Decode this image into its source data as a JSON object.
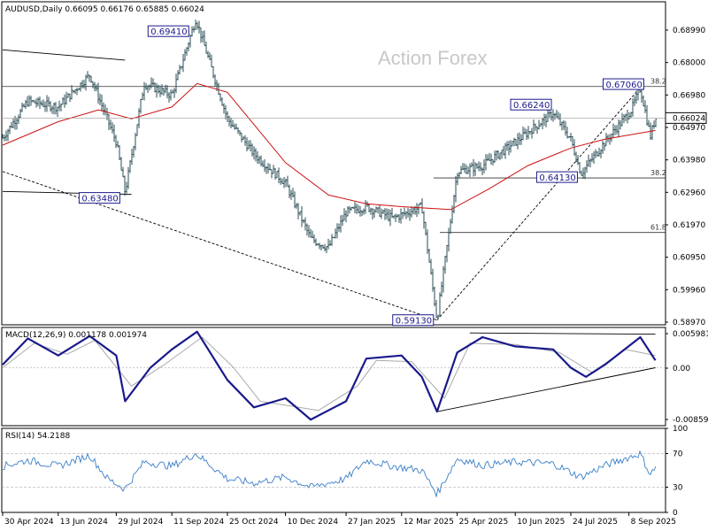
{
  "chart_data": [
    {
      "type": "bar",
      "panel": "price",
      "header": {
        "symbol": "AUDUSD,Daily",
        "open": "0.66095",
        "high": "0.66176",
        "low": "0.65885",
        "close": "0.66024"
      },
      "watermark": "Action Forex",
      "y_axis_labels": [
        "0.68990",
        "0.68000",
        "0.66980",
        "0.64970",
        "0.63980",
        "0.62960",
        "0.61970",
        "0.60950",
        "0.59960",
        "0.58970"
      ],
      "ylim": [
        0.5897,
        0.6999
      ],
      "current_price_label": "0.66024",
      "price_path": [
        {
          "d": "2024-04-30",
          "v": 0.6535
        },
        {
          "d": "2024-05-20",
          "v": 0.666
        },
        {
          "d": "2024-06-13",
          "v": 0.664
        },
        {
          "d": "2024-07-08",
          "v": 0.675
        },
        {
          "d": "2024-07-29",
          "v": 0.652
        },
        {
          "d": "2024-08-05",
          "v": 0.6348
        },
        {
          "d": "2024-08-20",
          "v": 0.672
        },
        {
          "d": "2024-09-11",
          "v": 0.668
        },
        {
          "d": "2024-09-30",
          "v": 0.6941
        },
        {
          "d": "2024-10-25",
          "v": 0.66
        },
        {
          "d": "2024-11-15",
          "v": 0.648
        },
        {
          "d": "2024-12-10",
          "v": 0.638
        },
        {
          "d": "2024-12-30",
          "v": 0.619
        },
        {
          "d": "2025-01-13",
          "v": 0.616
        },
        {
          "d": "2025-01-27",
          "v": 0.628
        },
        {
          "d": "2025-02-12",
          "v": 0.63
        },
        {
          "d": "2025-03-05",
          "v": 0.626
        },
        {
          "d": "2025-03-28",
          "v": 0.63
        },
        {
          "d": "2025-04-09",
          "v": 0.5913
        },
        {
          "d": "2025-04-25",
          "v": 0.642
        },
        {
          "d": "2025-05-15",
          "v": 0.644
        },
        {
          "d": "2025-06-10",
          "v": 0.652
        },
        {
          "d": "2025-07-10",
          "v": 0.662
        },
        {
          "d": "2025-07-24",
          "v": 0.653
        },
        {
          "d": "2025-08-01",
          "v": 0.6413
        },
        {
          "d": "2025-08-20",
          "v": 0.652
        },
        {
          "d": "2025-09-10",
          "v": 0.663
        },
        {
          "d": "2025-09-17",
          "v": 0.6706
        },
        {
          "d": "2025-09-25",
          "v": 0.654
        },
        {
          "d": "2025-09-29",
          "v": 0.6602
        }
      ],
      "ma_path": [
        {
          "d": "2024-04-30",
          "v": 0.651
        },
        {
          "d": "2024-06-13",
          "v": 0.659
        },
        {
          "d": "2024-07-15",
          "v": 0.663
        },
        {
          "d": "2024-08-10",
          "v": 0.66
        },
        {
          "d": "2024-09-11",
          "v": 0.664
        },
        {
          "d": "2024-10-01",
          "v": 0.672
        },
        {
          "d": "2024-10-25",
          "v": 0.669
        },
        {
          "d": "2024-12-10",
          "v": 0.645
        },
        {
          "d": "2025-01-13",
          "v": 0.634
        },
        {
          "d": "2025-02-12",
          "v": 0.631
        },
        {
          "d": "2025-03-12",
          "v": 0.63
        },
        {
          "d": "2025-04-20",
          "v": 0.629
        },
        {
          "d": "2025-05-20",
          "v": 0.636
        },
        {
          "d": "2025-06-20",
          "v": 0.644
        },
        {
          "d": "2025-07-24",
          "v": 0.65
        },
        {
          "d": "2025-08-20",
          "v": 0.653
        },
        {
          "d": "2025-09-29",
          "v": 0.656
        }
      ],
      "labels": [
        {
          "text": "0.69410",
          "d": "2024-09-30",
          "v": 0.6941
        },
        {
          "text": "0.63480",
          "d": "2024-08-05",
          "v": 0.6348
        },
        {
          "text": "0.59130",
          "d": "2025-04-09",
          "v": 0.5913
        },
        {
          "text": "0.66240",
          "d": "2025-07-10",
          "v": 0.6624
        },
        {
          "text": "0.64130",
          "d": "2025-08-01",
          "v": 0.6413
        },
        {
          "text": "0.67060",
          "d": "2025-09-17",
          "v": 0.6706
        }
      ],
      "fibonacci": [
        {
          "label": "38.2",
          "v": 0.671
        },
        {
          "label": "38.2",
          "v": 0.6398
        },
        {
          "label": "61.8",
          "v": 0.6212
        }
      ],
      "trendlines": [
        {
          "from": {
            "d": "2024-04-30",
            "v": 0.6835
          },
          "to": {
            "d": "2024-08-05",
            "v": 0.68
          },
          "style": "solid"
        },
        {
          "from": {
            "d": "2024-04-30",
            "v": 0.6352
          },
          "to": {
            "d": "2024-08-10",
            "v": 0.6342
          },
          "style": "solid"
        },
        {
          "from": {
            "d": "2024-04-30",
            "v": 0.642
          },
          "to": {
            "d": "2025-04-09",
            "v": 0.5913
          },
          "style": "dashed"
        },
        {
          "from": {
            "d": "2025-04-09",
            "v": 0.5913
          },
          "to": {
            "d": "2025-09-17",
            "v": 0.6706
          },
          "style": "dashed"
        }
      ]
    },
    {
      "type": "line",
      "panel": "macd",
      "header": "MACD(12,26,9) 0.001178 0.001974",
      "y_axis_labels": [
        "0.005981",
        "0.00",
        "-0.00859"
      ],
      "ylim": [
        -0.0095,
        0.0066
      ],
      "series": [
        {
          "values": [
            {
              "d": "2024-04-30",
              "v": 0.0005
            },
            {
              "d": "2024-05-20",
              "v": 0.0048
            },
            {
              "d": "2024-06-13",
              "v": 0.002
            },
            {
              "d": "2024-07-08",
              "v": 0.0052
            },
            {
              "d": "2024-07-29",
              "v": 0.002
            },
            {
              "d": "2024-08-05",
              "v": -0.0055
            },
            {
              "d": "2024-08-25",
              "v": 0.0
            },
            {
              "d": "2024-09-11",
              "v": 0.003
            },
            {
              "d": "2024-10-01",
              "v": 0.0059
            },
            {
              "d": "2024-10-25",
              "v": -0.002
            },
            {
              "d": "2024-11-15",
              "v": -0.0065
            },
            {
              "d": "2024-12-10",
              "v": -0.005
            },
            {
              "d": "2024-12-30",
              "v": -0.0085
            },
            {
              "d": "2025-01-27",
              "v": -0.0055
            },
            {
              "d": "2025-02-12",
              "v": 0.0015
            },
            {
              "d": "2025-03-12",
              "v": 0.002
            },
            {
              "d": "2025-03-28",
              "v": -0.0015
            },
            {
              "d": "2025-04-09",
              "v": -0.0072
            },
            {
              "d": "2025-04-25",
              "v": 0.0025
            },
            {
              "d": "2025-05-15",
              "v": 0.005
            },
            {
              "d": "2025-06-10",
              "v": 0.0035
            },
            {
              "d": "2025-07-10",
              "v": 0.003
            },
            {
              "d": "2025-07-24",
              "v": 0.0
            },
            {
              "d": "2025-08-05",
              "v": -0.0015
            },
            {
              "d": "2025-08-20",
              "v": 0.0005
            },
            {
              "d": "2025-09-17",
              "v": 0.005
            },
            {
              "d": "2025-09-29",
              "v": 0.0012
            }
          ]
        },
        {
          "values": [
            {
              "d": "2024-04-30",
              "v": 0.0
            },
            {
              "d": "2024-05-25",
              "v": 0.004
            },
            {
              "d": "2024-06-20",
              "v": 0.0022
            },
            {
              "d": "2024-07-12",
              "v": 0.0045
            },
            {
              "d": "2024-08-10",
              "v": -0.003
            },
            {
              "d": "2024-09-05",
              "v": 0.0005
            },
            {
              "d": "2024-10-05",
              "v": 0.005
            },
            {
              "d": "2024-10-30",
              "v": 0.0
            },
            {
              "d": "2024-11-20",
              "v": -0.0055
            },
            {
              "d": "2025-01-05",
              "v": -0.007
            },
            {
              "d": "2025-02-05",
              "v": -0.003
            },
            {
              "d": "2025-02-20",
              "v": 0.0012
            },
            {
              "d": "2025-03-20",
              "v": 0.001
            },
            {
              "d": "2025-04-15",
              "v": -0.005
            },
            {
              "d": "2025-05-05",
              "v": 0.004
            },
            {
              "d": "2025-06-10",
              "v": 0.0038
            },
            {
              "d": "2025-07-15",
              "v": 0.0025
            },
            {
              "d": "2025-08-10",
              "v": -0.0008
            },
            {
              "d": "2025-09-05",
              "v": 0.003
            },
            {
              "d": "2025-09-29",
              "v": 0.002
            }
          ]
        }
      ],
      "trendlines": [
        {
          "from": {
            "d": "2025-05-05",
            "v": 0.0057
          },
          "to": {
            "d": "2025-09-29",
            "v": 0.0055
          }
        },
        {
          "from": {
            "d": "2025-04-09",
            "v": -0.0072
          },
          "to": {
            "d": "2025-09-29",
            "v": 0.0
          }
        }
      ]
    },
    {
      "type": "line",
      "panel": "rsi",
      "header": "RSI(14) 54.2188",
      "y_axis_labels": [
        "100",
        "70",
        "30",
        "0"
      ],
      "ylim": [
        0,
        100
      ],
      "levels": [
        70,
        30
      ],
      "series": [
        {
          "values": [
            {
              "d": "2024-04-30",
              "v": 55
            },
            {
              "d": "2024-05-20",
              "v": 62
            },
            {
              "d": "2024-06-13",
              "v": 55
            },
            {
              "d": "2024-07-08",
              "v": 68
            },
            {
              "d": "2024-07-22",
              "v": 40
            },
            {
              "d": "2024-08-05",
              "v": 28
            },
            {
              "d": "2024-08-20",
              "v": 60
            },
            {
              "d": "2024-09-11",
              "v": 55
            },
            {
              "d": "2024-09-30",
              "v": 70
            },
            {
              "d": "2024-10-25",
              "v": 40
            },
            {
              "d": "2024-11-15",
              "v": 35
            },
            {
              "d": "2024-12-10",
              "v": 42
            },
            {
              "d": "2024-12-30",
              "v": 30
            },
            {
              "d": "2025-01-27",
              "v": 40
            },
            {
              "d": "2025-02-12",
              "v": 62
            },
            {
              "d": "2025-03-05",
              "v": 55
            },
            {
              "d": "2025-03-28",
              "v": 50
            },
            {
              "d": "2025-04-09",
              "v": 22
            },
            {
              "d": "2025-04-25",
              "v": 64
            },
            {
              "d": "2025-05-15",
              "v": 56
            },
            {
              "d": "2025-06-10",
              "v": 60
            },
            {
              "d": "2025-07-10",
              "v": 58
            },
            {
              "d": "2025-08-01",
              "v": 42
            },
            {
              "d": "2025-08-20",
              "v": 56
            },
            {
              "d": "2025-09-17",
              "v": 70
            },
            {
              "d": "2025-09-25",
              "v": 45
            },
            {
              "d": "2025-09-29",
              "v": 54
            }
          ]
        }
      ]
    }
  ],
  "x_axis": {
    "labels": [
      {
        "text": "30 Apr 2024",
        "d": "2024-04-30"
      },
      {
        "text": "13 Jun 2024",
        "d": "2024-06-13"
      },
      {
        "text": "29 Jul 2024",
        "d": "2024-07-29"
      },
      {
        "text": "11 Sep 2024",
        "d": "2024-09-11"
      },
      {
        "text": "25 Oct 2024",
        "d": "2024-10-25"
      },
      {
        "text": "10 Dec 2024",
        "d": "2024-12-10"
      },
      {
        "text": "27 Jan 2025",
        "d": "2025-01-27"
      },
      {
        "text": "12 Mar 2025",
        "d": "2025-03-12"
      },
      {
        "text": "25 Apr 2025",
        "d": "2025-04-25"
      },
      {
        "text": "10 Jun 2025",
        "d": "2025-06-10"
      },
      {
        "text": "24 Jul 2025",
        "d": "2025-07-24"
      },
      {
        "text": "8 Sep 2025",
        "d": "2025-09-08"
      }
    ]
  },
  "colors": {
    "price": "#2a4d55",
    "ma": "#cc1111",
    "macd": "#1a1a8c",
    "signal": "#aaaaaa",
    "rsi": "#3a7ec8",
    "label_border": "#1a1a8c",
    "grid_line": "#000000"
  }
}
